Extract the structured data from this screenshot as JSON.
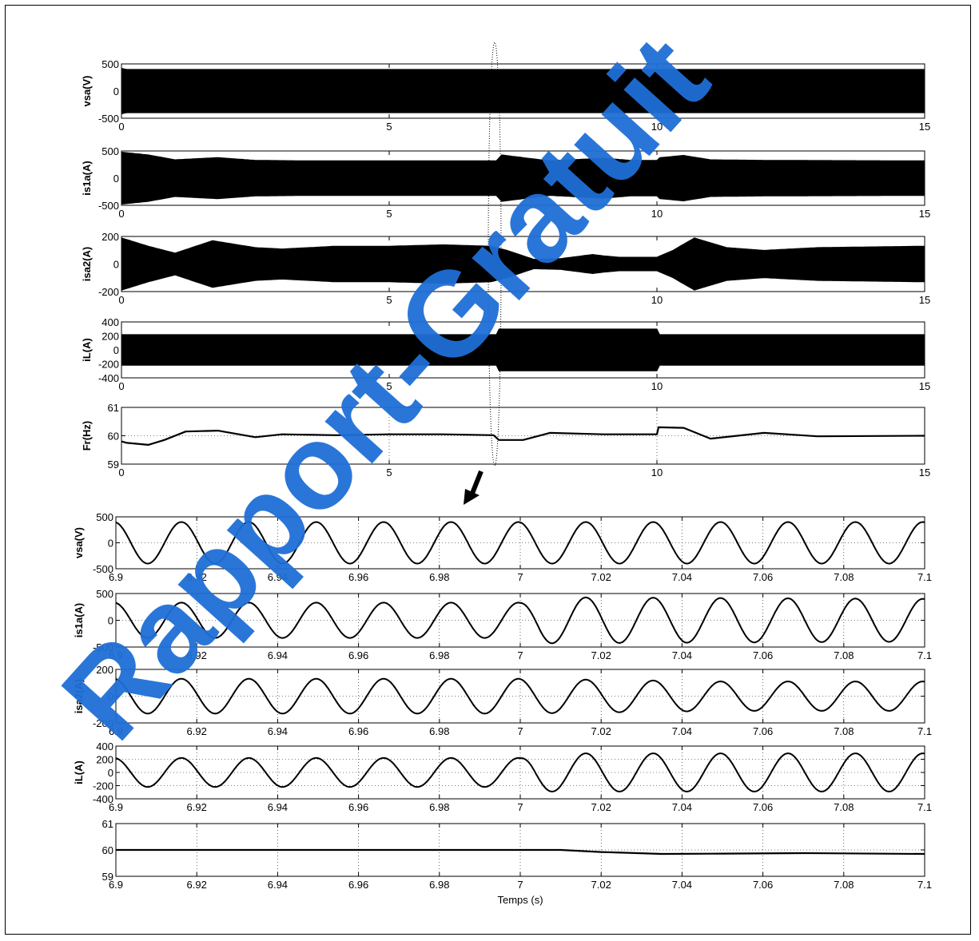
{
  "colors": {
    "trace": "#000000",
    "watermark": "#1f6fd6",
    "frame": "#000000"
  },
  "watermark": {
    "text": "Rapport-Gratuit"
  },
  "chart_data": [
    {
      "type": "line",
      "id": "p1",
      "ylabel": "vsa(V)",
      "xlim": [
        0,
        15
      ],
      "ylim": [
        -500,
        500
      ],
      "xticks": [
        0,
        5,
        10,
        15
      ],
      "yticks": [
        -500,
        0,
        500
      ],
      "signal": "vsa",
      "grid": false,
      "series": [
        {
          "kind": "envelope",
          "amplitude": [
            [
              0,
              420
            ],
            [
              0.1,
              400
            ],
            [
              15,
              400
            ]
          ]
        }
      ]
    },
    {
      "type": "line",
      "id": "p2",
      "ylabel": "is1a(A)",
      "xlim": [
        0,
        15
      ],
      "ylim": [
        -500,
        500
      ],
      "xticks": [
        0,
        5,
        10,
        15
      ],
      "yticks": [
        -500,
        0,
        500
      ],
      "signal": "is1a",
      "grid": false,
      "series": [
        {
          "kind": "envelope",
          "amplitude": [
            [
              0,
              480
            ],
            [
              0.5,
              430
            ],
            [
              1,
              340
            ],
            [
              1.8,
              380
            ],
            [
              2.5,
              330
            ],
            [
              3.5,
              320
            ],
            [
              5,
              320
            ],
            [
              7,
              320
            ],
            [
              7.1,
              430
            ],
            [
              7.5,
              380
            ],
            [
              8,
              320
            ],
            [
              9,
              370
            ],
            [
              9.5,
              330
            ],
            [
              10,
              330
            ],
            [
              10.05,
              380
            ],
            [
              10.5,
              420
            ],
            [
              11,
              340
            ],
            [
              12,
              330
            ],
            [
              15,
              320
            ]
          ]
        }
      ]
    },
    {
      "type": "line",
      "id": "p3",
      "ylabel": "isa2(A)",
      "xlim": [
        0,
        15
      ],
      "ylim": [
        -200,
        200
      ],
      "xticks": [
        0,
        5,
        10,
        15
      ],
      "yticks": [
        -200,
        0,
        200
      ],
      "signal": "isa2",
      "grid": false,
      "series": [
        {
          "kind": "envelope",
          "amplitude": [
            [
              0,
              190
            ],
            [
              0.5,
              130
            ],
            [
              1,
              80
            ],
            [
              1.7,
              170
            ],
            [
              2.5,
              120
            ],
            [
              3,
              110
            ],
            [
              4,
              130
            ],
            [
              5,
              130
            ],
            [
              6,
              140
            ],
            [
              6.9,
              130
            ],
            [
              7.2,
              100
            ],
            [
              7.7,
              35
            ],
            [
              8.2,
              40
            ],
            [
              8.8,
              70
            ],
            [
              9,
              60
            ],
            [
              9.3,
              50
            ],
            [
              10,
              50
            ],
            [
              10.3,
              100
            ],
            [
              10.7,
              190
            ],
            [
              11.3,
              120
            ],
            [
              12,
              100
            ],
            [
              13,
              120
            ],
            [
              15,
              130
            ]
          ]
        }
      ]
    },
    {
      "type": "line",
      "id": "p4",
      "ylabel": "iL(A)",
      "xlim": [
        0,
        15
      ],
      "ylim": [
        -400,
        400
      ],
      "xticks": [
        0,
        5,
        10,
        15
      ],
      "yticks": [
        -400,
        -200,
        0,
        200,
        400
      ],
      "signal": "iL",
      "grid": false,
      "series": [
        {
          "kind": "envelope",
          "amplitude": [
            [
              0,
              220
            ],
            [
              7,
              220
            ],
            [
              7.02,
              300
            ],
            [
              10,
              300
            ],
            [
              10.02,
              220
            ],
            [
              15,
              220
            ]
          ]
        }
      ]
    },
    {
      "type": "line",
      "id": "p5",
      "ylabel": "Fr(Hz)",
      "xlim": [
        0,
        15
      ],
      "ylim": [
        59,
        61
      ],
      "xticks": [
        0,
        5,
        10,
        15
      ],
      "yticks": [
        59,
        60,
        61
      ],
      "grid": true,
      "series": [
        {
          "kind": "line",
          "points": [
            [
              0,
              59.8
            ],
            [
              0.1,
              59.75
            ],
            [
              0.5,
              59.68
            ],
            [
              0.8,
              59.85
            ],
            [
              1.2,
              60.15
            ],
            [
              1.8,
              60.18
            ],
            [
              2.5,
              59.95
            ],
            [
              3,
              60.05
            ],
            [
              4,
              60.02
            ],
            [
              5,
              60.05
            ],
            [
              6,
              60.05
            ],
            [
              6.95,
              60.02
            ],
            [
              7.05,
              59.85
            ],
            [
              7.5,
              59.85
            ],
            [
              8,
              60.1
            ],
            [
              9,
              60.05
            ],
            [
              10,
              60.05
            ],
            [
              10.03,
              60.3
            ],
            [
              10.5,
              60.28
            ],
            [
              11,
              59.9
            ],
            [
              12,
              60.1
            ],
            [
              13,
              59.98
            ],
            [
              15,
              60.0
            ]
          ]
        }
      ]
    },
    {
      "type": "line",
      "id": "p6",
      "ylabel": "vsa(V)",
      "xlim": [
        6.9,
        7.1
      ],
      "ylim": [
        -500,
        500
      ],
      "xticks": [
        6.9,
        6.92,
        6.94,
        6.96,
        6.98,
        7,
        7.02,
        7.04,
        7.06,
        7.08,
        7.1
      ],
      "yticks": [
        -500,
        0,
        500
      ],
      "grid": true,
      "series": [
        {
          "kind": "sine",
          "freq_hz": 60,
          "phase_deg": 100,
          "amplitude": [
            [
              6.9,
              400
            ],
            [
              7.1,
              400
            ]
          ]
        }
      ]
    },
    {
      "type": "line",
      "id": "p7",
      "ylabel": "is1a(A)",
      "xlim": [
        6.9,
        7.1
      ],
      "ylim": [
        -500,
        500
      ],
      "xticks": [
        6.9,
        6.92,
        6.94,
        6.96,
        6.98,
        7,
        7.02,
        7.04,
        7.06,
        7.08,
        7.1
      ],
      "yticks": [
        -500,
        0,
        500
      ],
      "grid": true,
      "series": [
        {
          "kind": "sine",
          "freq_hz": 60,
          "phase_deg": 100,
          "amplitude": [
            [
              6.9,
              330
            ],
            [
              7,
              330
            ],
            [
              7.005,
              430
            ],
            [
              7.1,
              400
            ]
          ]
        }
      ]
    },
    {
      "type": "line",
      "id": "p8",
      "ylabel": "isa2(A)",
      "xlim": [
        6.9,
        7.1
      ],
      "ylim": [
        -200,
        200
      ],
      "xticks": [
        6.9,
        6.92,
        6.94,
        6.96,
        6.98,
        7,
        7.02,
        7.04,
        7.06,
        7.08,
        7.1
      ],
      "yticks": [
        -200,
        0,
        200
      ],
      "grid": true,
      "series": [
        {
          "kind": "sine",
          "freq_hz": 60,
          "phase_deg": 100,
          "amplitude": [
            [
              6.9,
              130
            ],
            [
              7,
              130
            ],
            [
              7.05,
              110
            ],
            [
              7.1,
              110
            ]
          ]
        }
      ]
    },
    {
      "type": "line",
      "id": "p9",
      "ylabel": "iL(A)",
      "xlim": [
        6.9,
        7.1
      ],
      "ylim": [
        -400,
        400
      ],
      "xticks": [
        6.9,
        6.92,
        6.94,
        6.96,
        6.98,
        7,
        7.02,
        7.04,
        7.06,
        7.08,
        7.1
      ],
      "yticks": [
        -400,
        -200,
        0,
        200,
        400
      ],
      "grid": true,
      "series": [
        {
          "kind": "sine",
          "freq_hz": 60,
          "phase_deg": 100,
          "amplitude": [
            [
              6.9,
              220
            ],
            [
              7,
              220
            ],
            [
              7.003,
              290
            ],
            [
              7.1,
              290
            ]
          ]
        }
      ]
    },
    {
      "type": "line",
      "id": "p10",
      "ylabel": "",
      "xlabel": "Temps (s)",
      "xlim": [
        6.9,
        7.1
      ],
      "ylim": [
        59,
        61
      ],
      "xticks": [
        6.9,
        6.92,
        6.94,
        6.96,
        6.98,
        7,
        7.02,
        7.04,
        7.06,
        7.08,
        7.1
      ],
      "yticks": [
        59,
        60,
        61
      ],
      "grid": true,
      "series": [
        {
          "kind": "line",
          "points": [
            [
              6.9,
              60
            ],
            [
              7.01,
              60
            ],
            [
              7.02,
              59.92
            ],
            [
              7.035,
              59.85
            ],
            [
              7.05,
              59.86
            ],
            [
              7.07,
              59.88
            ],
            [
              7.1,
              59.85
            ]
          ]
        }
      ]
    }
  ]
}
